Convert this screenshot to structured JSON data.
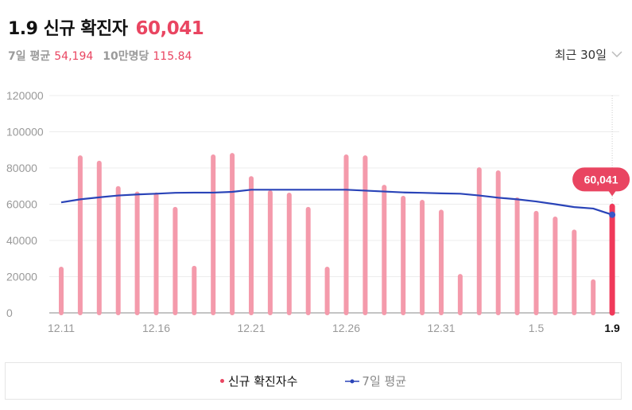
{
  "header": {
    "title": "1.9 신규 확진자",
    "title_value": "60,041",
    "avg_label": "7일 평균",
    "avg_value": "54,194",
    "per100k_label": "10만명당",
    "per100k_value": "115.84"
  },
  "range_select": {
    "label": "최근 30일",
    "icon": "chevron-down-icon"
  },
  "legend": {
    "items": [
      {
        "label": "신규 확진자수",
        "color": "#e94561",
        "icon": "dot-icon"
      },
      {
        "label": "7일 평균",
        "color": "#2a44b8",
        "icon": "line-dot-icon"
      }
    ]
  },
  "tooltip": {
    "label": "60,041"
  },
  "colors": {
    "bar": "#f49aab",
    "bar_highlight": "#f0395a",
    "line": "#2a44b8",
    "accent": "#e94561"
  },
  "chart_data": {
    "type": "bar",
    "title": "1.9 신규 확진자 60,041",
    "xlabel": "",
    "ylabel": "",
    "ylim": [
      0,
      120000
    ],
    "yticks": [
      0,
      20000,
      40000,
      60000,
      80000,
      100000,
      120000
    ],
    "grid": true,
    "legend_position": "bottom",
    "x_tick_labels": [
      "12.11",
      "12.16",
      "12.21",
      "12.26",
      "12.31",
      "1.5",
      "1.9"
    ],
    "categories": [
      "12.11",
      "12.12",
      "12.13",
      "12.14",
      "12.15",
      "12.16",
      "12.17",
      "12.18",
      "12.19",
      "12.20",
      "12.21",
      "12.22",
      "12.23",
      "12.24",
      "12.25",
      "12.26",
      "12.27",
      "12.28",
      "12.29",
      "12.30",
      "12.31",
      "1.1",
      "1.2",
      "1.3",
      "1.4",
      "1.5",
      "1.6",
      "1.7",
      "1.8",
      "1.9"
    ],
    "series": [
      {
        "name": "신규 확진자수",
        "type": "bar",
        "values": [
          25500,
          87000,
          84000,
          70000,
          67000,
          66500,
          58500,
          26000,
          87500,
          88300,
          75500,
          67700,
          66400,
          58500,
          25500,
          87500,
          87000,
          70700,
          64600,
          62400,
          57000,
          21500,
          80400,
          78700,
          63800,
          56300,
          53200,
          46000,
          18500,
          60041
        ]
      },
      {
        "name": "7일 평균",
        "type": "line",
        "values": [
          61000,
          62700,
          63800,
          64800,
          65400,
          65800,
          66300,
          66400,
          66400,
          66800,
          68000,
          68000,
          68000,
          68000,
          68000,
          68000,
          67500,
          67000,
          66500,
          66300,
          66000,
          65800,
          64800,
          63600,
          62700,
          61500,
          60000,
          58400,
          57600,
          54194
        ]
      }
    ],
    "highlight": {
      "category": "1.9",
      "value": 60041
    }
  }
}
